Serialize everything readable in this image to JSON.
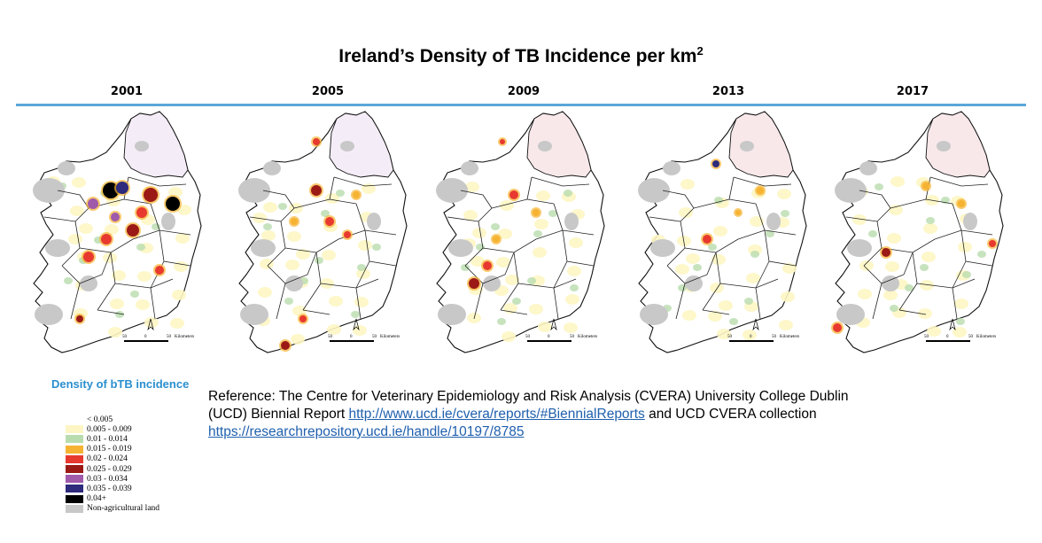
{
  "title": {
    "text": "Ireland’s Density of TB Incidence per km",
    "sup": "2"
  },
  "years": [
    "2001",
    "2005",
    "2009",
    "2013",
    "2017"
  ],
  "scale": {
    "left": "50",
    "mid": "0",
    "right": "50",
    "unit": "Kilometers"
  },
  "legend": {
    "title": "Density of bTB incidence",
    "items": [
      {
        "label": "< 0.005",
        "color": "#ffffff"
      },
      {
        "label": "0.005 - 0.009",
        "color": "#fdf6c4"
      },
      {
        "label": "0.01 - 0.014",
        "color": "#b9dcae"
      },
      {
        "label": "0.015 - 0.019",
        "color": "#f6b332"
      },
      {
        "label": "0.02 - 0.024",
        "color": "#e8392f"
      },
      {
        "label": "0.025 - 0.029",
        "color": "#9b1a16"
      },
      {
        "label": "0.03 - 0.034",
        "color": "#a05aaa"
      },
      {
        "label": "0.035 - 0.039",
        "color": "#2e2a7c"
      },
      {
        "label": "0.04+",
        "color": "#000000"
      },
      {
        "label": "Non-agricultural land",
        "color": "#c8c8c8"
      }
    ]
  },
  "reference": {
    "line1": "Reference: The Centre for Veterinary Epidemiology and Risk Analysis (CVERA) University College Dublin",
    "line2_prefix": "(UCD) Biennial Report ",
    "link1": "http://www.ucd.ie/cvera/reports/#BiennialReports",
    "line2_suffix": " and UCD CVERA collection",
    "link2": "https://researchrepository.ucd.ie/handle/10197/8785"
  }
}
